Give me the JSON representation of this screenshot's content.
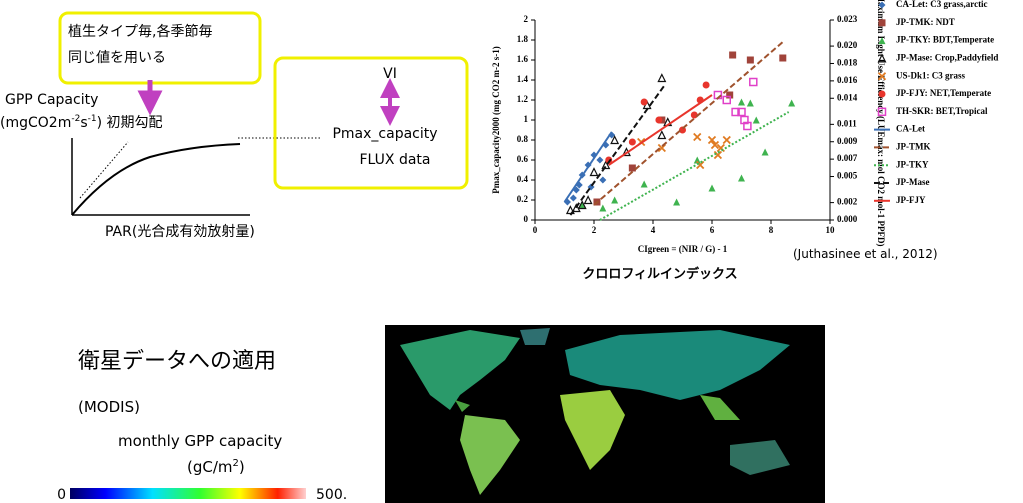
{
  "diagram": {
    "note_lines": [
      "植生タイプ毎,各季節毎",
      "同じ値を用いる"
    ],
    "gpp_label": "GPP Capacity",
    "unit_parts": [
      "(mgCO2m",
      "-2",
      "s",
      "-1",
      ") 初期勾配"
    ],
    "x_label": "PAR(光合成有効放射量)",
    "box_lines": [
      "VI",
      "Pmax_capacity",
      "FLUX data"
    ]
  },
  "chart_data": {
    "type": "scatter",
    "xlabel": "CIgreen = (NIR / G) - 1",
    "ylabel": "Pmax_capacity2000 (mg CO2 m-2 s-1)",
    "y2label": "Maximum Light Use Efficiency (LUEmax: mol CO2 mol-1 PPFD)",
    "xlim": [
      0,
      10
    ],
    "xticks": [
      0,
      2,
      4,
      6,
      8,
      10
    ],
    "ylim": [
      0,
      2
    ],
    "yticks": [
      0,
      0.2,
      0.4,
      0.6,
      0.8,
      1,
      1.2,
      1.4,
      1.6,
      1.8,
      2
    ],
    "y2lim": [
      0,
      0.023
    ],
    "y2ticks": [
      {
        "value": 0,
        "label": "0.000"
      },
      {
        "value": 0.002,
        "label": "0.002"
      },
      {
        "value": 0.005,
        "label": "0.005"
      },
      {
        "value": 0.007,
        "label": "0.007"
      },
      {
        "value": 0.009,
        "label": "0.009"
      },
      {
        "value": 0.011,
        "label": "0.011"
      },
      {
        "value": 0.014,
        "label": "0.014"
      },
      {
        "value": 0.016,
        "label": "0.016"
      },
      {
        "value": 0.018,
        "label": "0.018"
      },
      {
        "value": 0.02,
        "label": "0.020"
      },
      {
        "value": 0.023,
        "label": "0.023"
      }
    ],
    "series": [
      {
        "name": "CA-Let: C3 grass,arctic",
        "color": "#3a6fb5",
        "marker": "diamond",
        "x": [
          1.1,
          1.3,
          1.4,
          1.5,
          1.6,
          1.8,
          2.0,
          2.2,
          2.4,
          2.6,
          2.3,
          1.9
        ],
        "values": [
          0.18,
          0.22,
          0.3,
          0.35,
          0.45,
          0.55,
          0.65,
          0.6,
          0.75,
          0.85,
          0.4,
          0.33
        ]
      },
      {
        "name": "JP-TMK: NDT",
        "color": "#a0433a",
        "marker": "square",
        "x": [
          2.1,
          3.3,
          4.3,
          6.7,
          7.3,
          8.4,
          6.6
        ],
        "values": [
          0.18,
          0.52,
          1.0,
          1.65,
          1.6,
          1.62,
          1.25
        ]
      },
      {
        "name": "JP-TKY: BDT,Temperate",
        "color": "#3fb34f",
        "marker": "triangle",
        "x": [
          1.6,
          2.3,
          2.7,
          3.7,
          4.8,
          5.5,
          6.0,
          7.0,
          7.3,
          7.0,
          7.8,
          8.7,
          7.5
        ],
        "values": [
          0.15,
          0.12,
          0.2,
          0.36,
          0.18,
          0.6,
          0.32,
          1.18,
          1.17,
          0.42,
          0.68,
          1.17,
          1.0
        ]
      },
      {
        "name": "JP-Mase: Crop,Paddyfield",
        "color": "#111111",
        "marker": "open-triangle",
        "x": [
          1.2,
          1.4,
          1.6,
          1.8,
          2.0,
          2.4,
          3.1,
          3.8,
          4.3,
          4.5,
          4.3,
          2.7
        ],
        "values": [
          0.1,
          0.12,
          0.15,
          0.2,
          0.48,
          0.55,
          0.68,
          1.15,
          1.42,
          0.98,
          0.85,
          0.8
        ]
      },
      {
        "name": "US-Dk1: C3 grass",
        "color": "#e07b22",
        "marker": "x",
        "x": [
          3.6,
          4.3,
          5.6,
          5.5,
          6.1,
          6.2,
          6.0,
          6.3,
          6.5
        ],
        "values": [
          0.78,
          0.72,
          0.55,
          0.83,
          0.75,
          0.65,
          0.8,
          0.72,
          0.8
        ]
      },
      {
        "name": "JP-FJY: NET,Temperate",
        "color": "#e8352c",
        "marker": "circle",
        "x": [
          2.5,
          3.3,
          4.2,
          5.0,
          5.6,
          5.8,
          3.7,
          5.4
        ],
        "values": [
          0.6,
          0.78,
          1.0,
          0.9,
          1.2,
          1.35,
          1.18,
          1.05
        ]
      },
      {
        "name": "TH-SKR: BET,Tropical",
        "color": "#e040c8",
        "marker": "open-square",
        "x": [
          6.2,
          6.5,
          7.0,
          7.1,
          7.2,
          7.4,
          6.8
        ],
        "values": [
          1.25,
          1.2,
          1.08,
          1.0,
          0.94,
          1.38,
          1.08
        ]
      },
      {
        "name": "CA-Let",
        "color": "#3a6fb5",
        "line": "solid",
        "x": [
          1.0,
          2.6
        ],
        "values": [
          0.18,
          0.88
        ]
      },
      {
        "name": "JP-TMK",
        "color": "#a0522d",
        "line": "dashed",
        "x": [
          2.0,
          8.4
        ],
        "values": [
          0.15,
          1.78
        ]
      },
      {
        "name": "JP-TKY",
        "color": "#3fb34f",
        "line": "dotted",
        "x": [
          2.2,
          8.6
        ],
        "values": [
          0.0,
          1.08
        ]
      },
      {
        "name": "JP-Mase",
        "color": "#111111",
        "line": "dashed",
        "x": [
          1.2,
          4.4
        ],
        "values": [
          0.05,
          1.35
        ]
      },
      {
        "name": "JP-FJY",
        "color": "#e8352c",
        "line": "solid",
        "x": [
          2.5,
          6.0
        ],
        "values": [
          0.55,
          1.25
        ]
      }
    ]
  },
  "citation": "(Juthasinee et al., 2012)",
  "index_caption": "クロロフィルインデックス",
  "satellite": {
    "title": "衛星データへの適用",
    "source": "(MODIS)",
    "quantity": "monthly GPP capacity",
    "unit_parts": [
      "(gC/m",
      "2",
      ")"
    ],
    "colorbar_labels": [
      "0",
      "500."
    ]
  }
}
